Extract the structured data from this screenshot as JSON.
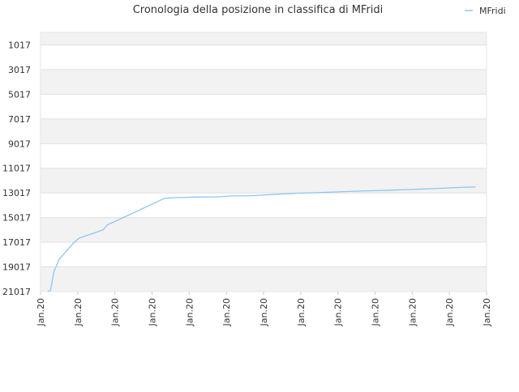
{
  "chart_data": {
    "type": "line",
    "title": "Cronologia della posizione in classifica di MFridi",
    "xlabel": "",
    "ylabel": "",
    "legend": {
      "position": "top-right",
      "entries": [
        "MFridi"
      ]
    },
    "colors": {
      "series": "#8ec6ee",
      "band": "#f2f2f2",
      "grid": "#e0e0e0",
      "text": "#333333"
    },
    "y_reversed": true,
    "ylim": [
      21017,
      0
    ],
    "y_ticks": [
      1017,
      3017,
      5017,
      7017,
      9017,
      11017,
      13017,
      15017,
      17017,
      19017,
      21017
    ],
    "x_tick_labels": [
      "Jan.20",
      "Jan.20",
      "Jan.20",
      "Jan.20",
      "Jan.20",
      "Jan.20",
      "Jan.20",
      "Jan.20",
      "Jan.20",
      "Jan.20",
      "Jan.20",
      "Jan.20",
      "Jan.20"
    ],
    "series": [
      {
        "name": "MFridi",
        "x": [
          0.2,
          0.27,
          0.36,
          0.5,
          0.88,
          1.03,
          1.69,
          1.8,
          1.95,
          3.34,
          3.64,
          4.2,
          4.8,
          5.1,
          5.7,
          6.24,
          6.96,
          7.6,
          8.28,
          8.9,
          9.5,
          10.1,
          10.7,
          11.3,
          11.7
        ],
        "y": [
          21017,
          20900,
          19400,
          18400,
          17100,
          16700,
          16000,
          15600,
          15400,
          13450,
          13400,
          13350,
          13330,
          13270,
          13240,
          13150,
          13040,
          12980,
          12900,
          12840,
          12790,
          12720,
          12650,
          12570,
          12530
        ]
      }
    ]
  }
}
